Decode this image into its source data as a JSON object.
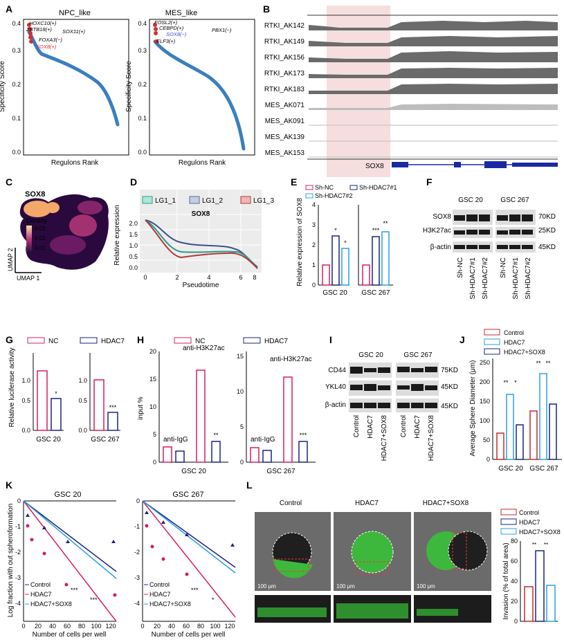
{
  "panel_letters": [
    "A",
    "B",
    "C",
    "D",
    "E",
    "F",
    "G",
    "H",
    "I",
    "J",
    "K",
    "L"
  ],
  "A": {
    "left": {
      "title": "NPC_like",
      "ylabel": "Specificity Score",
      "xlabel": "Regulons Rank",
      "yticks": [
        "0.0",
        "0.1",
        "0.2",
        "0.3",
        "0.4"
      ],
      "labels": [
        "HOXC10(+)",
        "ZBTB18(+)",
        "SOX11(+)",
        "FOXA3(−)",
        "SOX8(+)"
      ]
    },
    "right": {
      "title": "MES_like",
      "ylabel": "Specificity Score",
      "xlabel": "Regulons Rank",
      "yticks": [
        "0.0",
        "0.1",
        "0.2",
        "0.3",
        "0.4"
      ],
      "labels": [
        "FOSL2(+)",
        "CEBPD(+)",
        "PBX1(−)",
        "SOX8(−)",
        "ELF3(+)"
      ]
    }
  },
  "B": {
    "tracks": [
      "RTKI_AK142",
      "RTKI_AK149",
      "RTKI_AK156",
      "RTKI_AK173",
      "RTKI_AK183",
      "MES_AK071",
      "MES_AK091",
      "MES_AK139",
      "MES_AK153"
    ],
    "gene": "SOX8"
  },
  "C": {
    "title": "SOX8",
    "legend_title": "Density",
    "legend_ticks": [
      "0.03",
      "0.02",
      "0.01"
    ],
    "xlabel": "UMAP 1",
    "ylabel": "UMAP 2"
  },
  "D": {
    "title": "SOX8",
    "legend": [
      "LG1_1",
      "LG1_2",
      "LG1_3"
    ],
    "ylabel": "Relative expression",
    "xlabel": "Pseudotime",
    "yticks": [
      "0.0",
      "0.5",
      "1.0",
      "1.5",
      "2.0"
    ],
    "xticks": [
      "0",
      "2",
      "4",
      "6",
      "8"
    ]
  },
  "E": {
    "legend": [
      "Sh-NC",
      "Sh-HDAC7#1",
      "Sh-HDAC7#2"
    ],
    "ylabel": "Relative expression of SOX8",
    "yticks": [
      "0",
      "1",
      "2",
      "3",
      "4"
    ],
    "groups": [
      "GSC 20",
      "GSC 267"
    ],
    "sig": [
      "*",
      "*",
      "***",
      "**"
    ]
  },
  "F": {
    "cols": [
      "GSC 20",
      "GSC 267"
    ],
    "rows": [
      "SOX8",
      "H3K27ac",
      "β-actin"
    ],
    "markers": [
      "70KD",
      "25KD",
      "45KD"
    ],
    "lanes": [
      "Sh-NC",
      "Sh-HDAC7#1",
      "Sh-HDAC7#2",
      "Sh-NC",
      "Sh-HDAC7#1",
      "Sh-HDAC7#2"
    ]
  },
  "G": {
    "legend": [
      "NC",
      "HDAC7"
    ],
    "ylabel": "Relative luciferase activity",
    "yticks": [
      "0.0",
      "0.5",
      "1.0"
    ],
    "groups": [
      "GSC 20",
      "GSC 267"
    ],
    "sig": [
      "*",
      "***"
    ]
  },
  "H": {
    "legend": [
      "NC",
      "HDAC7"
    ],
    "ylabel": "input %",
    "yticks_l": [
      "0",
      "5",
      "10",
      "15",
      "20"
    ],
    "yticks_r": [
      "0",
      "5",
      "10",
      "15"
    ],
    "groups": [
      "GSC 20",
      "GSC 267"
    ],
    "ab": [
      "anti-IgG",
      "anti-H3K27ac"
    ],
    "sig": [
      "**",
      "***"
    ]
  },
  "I": {
    "cols": [
      "GSC 20",
      "GSC 267"
    ],
    "rows": [
      "CD44",
      "YKL40",
      "β-actin"
    ],
    "markers": [
      "75KD",
      "45KD",
      "45KD"
    ],
    "lanes": [
      "Control",
      "HDAC7",
      "HDAC7+SOX8",
      "Control",
      "HDAC7",
      "HDAC7+SOX8"
    ]
  },
  "J": {
    "legend": [
      "Control",
      "HDAC7",
      "HDAC7+SOX8"
    ],
    "ylabel": "Average Sphere Diameter (μm)",
    "yticks": [
      "0",
      "50",
      "100",
      "150",
      "200",
      "250"
    ],
    "groups": [
      "GSC 20",
      "GSC 267"
    ],
    "sig": [
      "**",
      "*",
      "**",
      "**"
    ]
  },
  "K": {
    "left": {
      "title": "GSC 20"
    },
    "right": {
      "title": "GSC 267"
    },
    "ylabel": "Log fraction with out spheroformation",
    "xlabel": "Number of cells per well",
    "yticks": [
      "0",
      "-1",
      "-2",
      "-3",
      "-4"
    ],
    "xticks": [
      "0",
      "20",
      "40",
      "60",
      "80",
      "100",
      "120"
    ],
    "legend": [
      "Control",
      "HDAC7",
      "HDAC7+SOX8"
    ],
    "sig_l": [
      "***",
      "***"
    ],
    "sig_r": [
      "***",
      "*"
    ]
  },
  "L": {
    "conditions": [
      "Control",
      "HDAC7",
      "HDAC7+SOX8"
    ],
    "scale": "100 μm",
    "legend": [
      "Control",
      "HDAC7",
      "HDAC7+SOX8"
    ],
    "ylabel": "Invasion (% of total area)",
    "yticks": [
      "0",
      "20",
      "40",
      "60",
      "80"
    ],
    "sig": [
      "**",
      "**"
    ]
  },
  "colors": {
    "pink": "#d81b60",
    "navy": "#1a237e",
    "cyan": "#29a0e0",
    "red": "#c62828",
    "blue": "#3a7ebf",
    "gray": "#777777"
  }
}
